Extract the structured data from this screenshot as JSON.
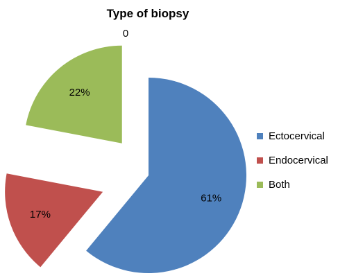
{
  "chart_data": {
    "type": "pie",
    "title": "Type of biopsy",
    "categories": [
      "Ectocervical",
      "Endocervical",
      "Both"
    ],
    "values": [
      61,
      17,
      22
    ],
    "value_labels": [
      "61%",
      "17%",
      "22%"
    ],
    "colors": [
      "#4F81BD",
      "#C0504D",
      "#9BBB59"
    ],
    "exploded": true,
    "legend_position": "right",
    "annotations": [
      {
        "text": "0"
      }
    ]
  }
}
